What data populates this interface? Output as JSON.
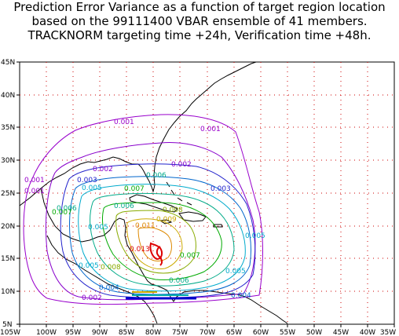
{
  "title": {
    "line1": "Prediction Error Variance as a function of target region location",
    "line2": "based on the 99111400 VBAR ensemble of 41 members.",
    "line3": "TRACKNORM targeting time +24h, Verification time +48h."
  },
  "map": {
    "lon_labels": [
      "105W",
      "100W",
      "95W",
      "90W",
      "85W",
      "80W",
      "75W",
      "70W",
      "65W",
      "60W",
      "55W",
      "50W",
      "45W",
      "40W",
      "35W"
    ],
    "lat_labels": [
      "45N",
      "40N",
      "35N",
      "30N",
      "25N",
      "20N",
      "15N",
      "10N",
      "5N"
    ],
    "grid_color": "#cc0000",
    "coast_color": "#000000"
  },
  "contour_labels": [
    {
      "text": "0.001",
      "color": "#9900cc"
    },
    {
      "text": "0.001",
      "color": "#9900cc"
    },
    {
      "text": "0.001",
      "color": "#9900cc"
    },
    {
      "text": "0.001",
      "color": "#9900cc"
    },
    {
      "text": "0.002",
      "color": "#8800cc"
    },
    {
      "text": "0.002",
      "color": "#8800cc"
    },
    {
      "text": "0.002",
      "color": "#8800cc"
    },
    {
      "text": "0.003",
      "color": "#2222cc"
    },
    {
      "text": "0.003",
      "color": "#2222cc"
    },
    {
      "text": "0.004",
      "color": "#0066cc"
    },
    {
      "text": "0.004",
      "color": "#0066cc"
    },
    {
      "text": "0.005",
      "color": "#00aacc"
    },
    {
      "text": "0.005",
      "color": "#00aacc"
    },
    {
      "text": "0.005",
      "color": "#00aacc"
    },
    {
      "text": "0.005",
      "color": "#00aacc"
    },
    {
      "text": "0.005",
      "color": "#00aacc"
    },
    {
      "text": "0.006",
      "color": "#00aa88"
    },
    {
      "text": "0.006",
      "color": "#00aa88"
    },
    {
      "text": "0.006",
      "color": "#00aa88"
    },
    {
      "text": "0.006",
      "color": "#00aa88"
    },
    {
      "text": "0.007",
      "color": "#00aa00"
    },
    {
      "text": "0.007",
      "color": "#00aa00"
    },
    {
      "text": "0.007",
      "color": "#00aa00"
    },
    {
      "text": "0.008",
      "color": "#88aa00"
    },
    {
      "text": "0.008",
      "color": "#88aa00"
    },
    {
      "text": "0.009",
      "color": "#ccaa00"
    },
    {
      "text": "0.011",
      "color": "#dd8800"
    },
    {
      "text": "0.013",
      "color": "#dd0000"
    }
  ]
}
